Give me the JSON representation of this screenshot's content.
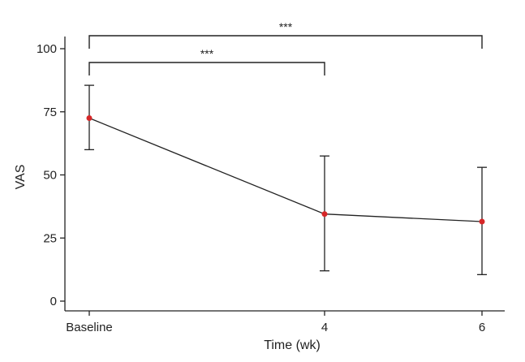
{
  "chart_data": {
    "type": "line",
    "xlabel": "Time (wk)",
    "ylabel": "VAS",
    "ylim": [
      0,
      105
    ],
    "x_ticks": [
      "Baseline",
      "4",
      "6"
    ],
    "y_ticks": [
      "0",
      "25",
      "50",
      "75",
      "100"
    ],
    "x_values": [
      0,
      4,
      6
    ],
    "series": [
      {
        "values": [
          72.5,
          34.5,
          31.5
        ],
        "error_upper": [
          85.5,
          57.5,
          53.0
        ],
        "error_lower": [
          60.0,
          12.0,
          10.5
        ]
      }
    ],
    "significance": [
      {
        "from": "Baseline",
        "to": "4",
        "label": "***"
      },
      {
        "from": "Baseline",
        "to": "6",
        "label": "***"
      }
    ],
    "grid": false,
    "legend": "none",
    "colors": {
      "marker": "#d62728",
      "line": "#222222",
      "axis": "#222222"
    }
  }
}
